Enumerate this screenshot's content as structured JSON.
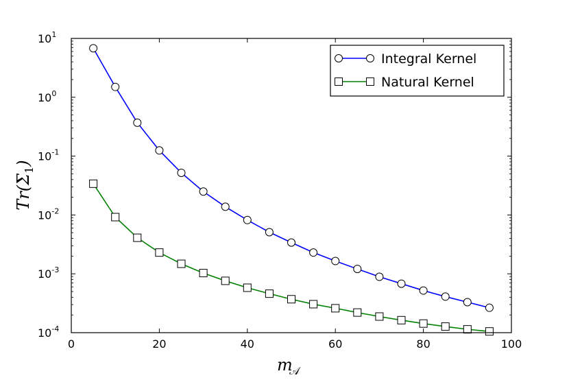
{
  "chart_data": {
    "type": "line",
    "x": [
      5,
      10,
      15,
      20,
      25,
      30,
      35,
      40,
      45,
      50,
      55,
      60,
      65,
      70,
      75,
      80,
      85,
      90,
      95
    ],
    "series": [
      {
        "name": "Integral Kernel",
        "values": [
          6.8,
          1.5,
          0.37,
          0.125,
          0.052,
          0.025,
          0.0138,
          0.0082,
          0.0051,
          0.0034,
          0.0023,
          0.00165,
          0.00121,
          0.00089,
          0.00068,
          0.00052,
          0.00041,
          0.00033,
          0.000265
        ],
        "color": "#0000ff",
        "marker": "circle"
      },
      {
        "name": "Natural Kernel",
        "values": [
          0.034,
          0.0092,
          0.0041,
          0.0023,
          0.00148,
          0.00103,
          0.00076,
          0.00058,
          0.00046,
          0.00037,
          0.000305,
          0.00026,
          0.00022,
          0.000188,
          0.000163,
          0.000143,
          0.000127,
          0.000114,
          0.000105
        ],
        "color": "#008000",
        "marker": "square"
      }
    ],
    "xlim": [
      0,
      100
    ],
    "ylim": [
      0.0001,
      10
    ],
    "yscale": "log",
    "xticks": [
      "0",
      "20",
      "40",
      "60",
      "80",
      "100"
    ],
    "yticks": [
      {
        "base": "10",
        "exp": "-4"
      },
      {
        "base": "10",
        "exp": "-3"
      },
      {
        "base": "10",
        "exp": "-2"
      },
      {
        "base": "10",
        "exp": "-1"
      },
      {
        "base": "10",
        "exp": "0"
      },
      {
        "base": "10",
        "exp": "1"
      }
    ],
    "xlabel": {
      "main": "m",
      "sub": "𝒜"
    },
    "ylabel": {
      "main": "Tr(Σ",
      "sub": "1",
      "close": ")"
    },
    "legend_position": "top-right",
    "grid": false
  }
}
